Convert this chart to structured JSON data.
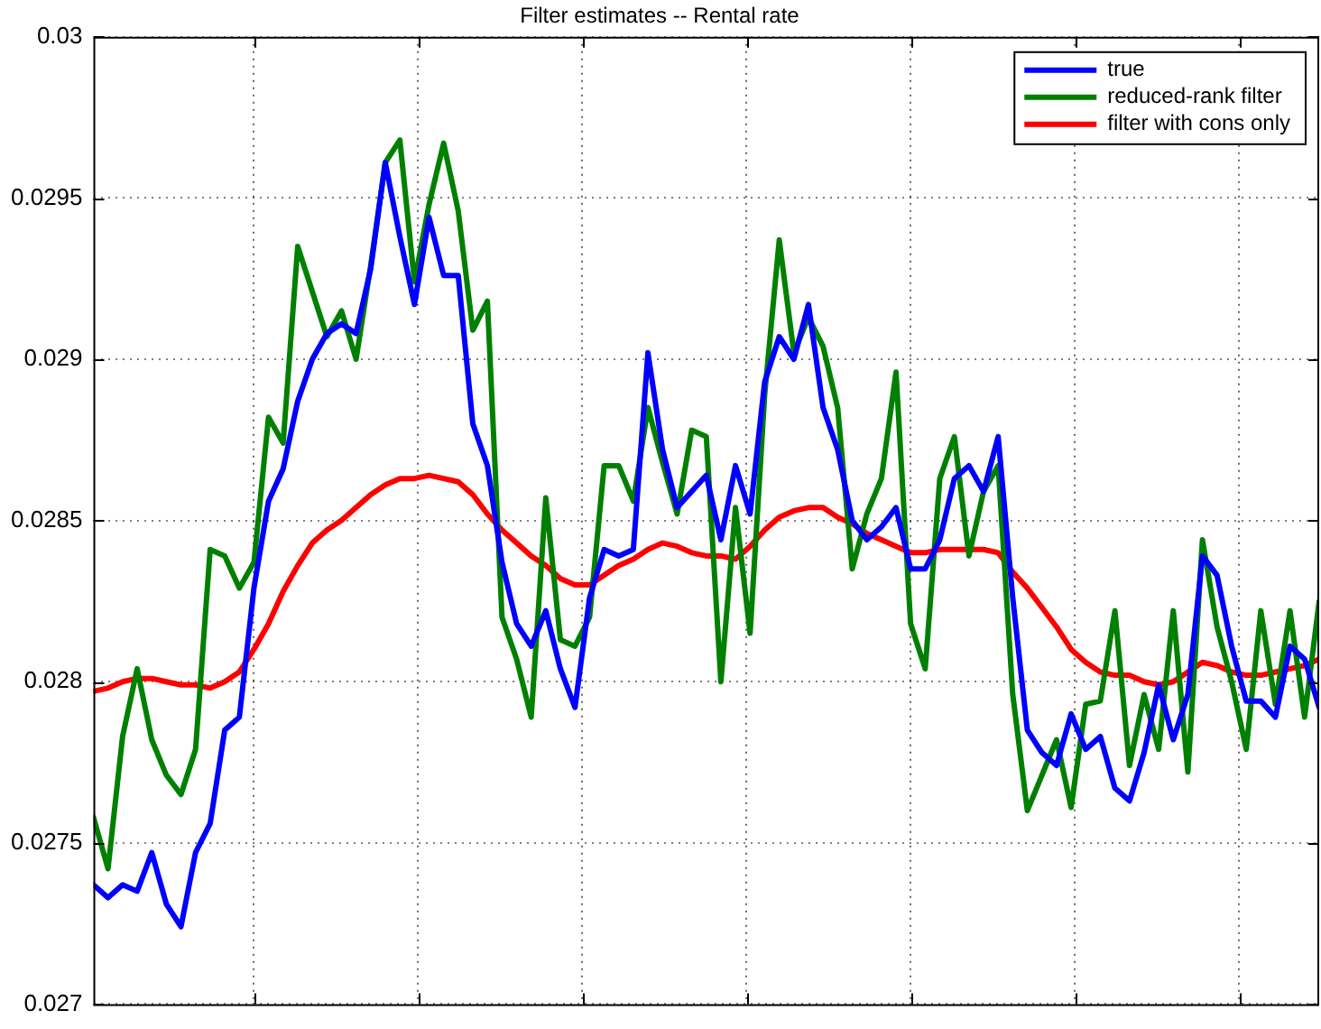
{
  "chart_data": {
    "type": "line",
    "title": "Filter estimates -- Rental rate",
    "categories": [
      null,
      null,
      null,
      null,
      null,
      null,
      null,
      null,
      null,
      null,
      null,
      null,
      null,
      null,
      null,
      null,
      null,
      null,
      null,
      null,
      null,
      null,
      null,
      null,
      null,
      null,
      null,
      null,
      null,
      null,
      null,
      null,
      null,
      null,
      null,
      null,
      null,
      null,
      null,
      null,
      null,
      null,
      null,
      null,
      null,
      null,
      null,
      null,
      null,
      null,
      null,
      null,
      null,
      null,
      null,
      null,
      null,
      null,
      null,
      null,
      null,
      null,
      null,
      null,
      null,
      null,
      null,
      null,
      null,
      null,
      null,
      null,
      null,
      null,
      null,
      null,
      null,
      null,
      null,
      null,
      null,
      null,
      null,
      null,
      null
    ],
    "series": [
      {
        "name": "true",
        "color": "#0000ff",
        "values": [
          0.02737,
          0.02733,
          0.02737,
          0.02735,
          0.02747,
          0.02731,
          0.02724,
          0.02747,
          0.02756,
          0.02785,
          0.02789,
          0.02829,
          0.02856,
          0.02866,
          0.02887,
          0.029,
          0.02908,
          0.02911,
          0.02908,
          0.02928,
          0.02961,
          0.02938,
          0.02917,
          0.02944,
          0.02926,
          0.02926,
          0.0288,
          0.02867,
          0.02837,
          0.02818,
          0.02811,
          0.02822,
          0.02804,
          0.02792,
          0.02826,
          0.02841,
          0.02839,
          0.02841,
          0.02902,
          0.02872,
          0.02854,
          0.02859,
          0.02864,
          0.02844,
          0.02867,
          0.02852,
          0.02893,
          0.02907,
          0.029,
          0.02917,
          0.02885,
          0.02872,
          0.0285,
          0.02844,
          0.02848,
          0.02854,
          0.02835,
          0.02835,
          0.02844,
          0.02863,
          0.02867,
          0.02859,
          0.02876,
          0.02826,
          0.02785,
          0.02778,
          0.02774,
          0.0279,
          0.02779,
          0.02783,
          0.02767,
          0.02763,
          0.02778,
          0.02799,
          0.02782,
          0.02796,
          0.02839,
          0.02833,
          0.02811,
          0.02794,
          0.02794,
          0.02789,
          0.02811,
          0.02807,
          0.02792
        ]
      },
      {
        "name": "reduced-rank filter",
        "color": "#008000",
        "values": [
          0.02758,
          0.02742,
          0.02783,
          0.02804,
          0.02782,
          0.02771,
          0.02765,
          0.02779,
          0.02841,
          0.02839,
          0.02829,
          0.02837,
          0.02882,
          0.02874,
          0.02935,
          0.02921,
          0.02907,
          0.02915,
          0.029,
          0.02929,
          0.02961,
          0.02968,
          0.02924,
          0.02948,
          0.02967,
          0.02946,
          0.02909,
          0.02918,
          0.0282,
          0.02807,
          0.02789,
          0.02857,
          0.02813,
          0.02811,
          0.0282,
          0.02867,
          0.02867,
          0.02856,
          0.02885,
          0.02868,
          0.02852,
          0.02878,
          0.02876,
          0.028,
          0.02854,
          0.02815,
          0.02889,
          0.02937,
          0.02902,
          0.02913,
          0.02904,
          0.02885,
          0.02835,
          0.02852,
          0.02863,
          0.02896,
          0.02818,
          0.02804,
          0.02863,
          0.02876,
          0.02839,
          0.02859,
          0.02867,
          0.02796,
          0.0276,
          0.02771,
          0.02782,
          0.02761,
          0.02793,
          0.02794,
          0.02822,
          0.02774,
          0.02796,
          0.02779,
          0.02822,
          0.02772,
          0.02844,
          0.02817,
          0.028,
          0.02779,
          0.02822,
          0.02793,
          0.02822,
          0.02789,
          0.02825
        ]
      },
      {
        "name": "filter with cons only",
        "color": "#ff0000",
        "values": [
          0.02797,
          0.02798,
          0.028,
          0.02801,
          0.02801,
          0.028,
          0.02799,
          0.02799,
          0.02798,
          0.028,
          0.02803,
          0.0281,
          0.02818,
          0.02828,
          0.02836,
          0.02843,
          0.02847,
          0.0285,
          0.02854,
          0.02858,
          0.02861,
          0.02863,
          0.02863,
          0.02864,
          0.02863,
          0.02862,
          0.02858,
          0.02852,
          0.02847,
          0.02843,
          0.02839,
          0.02836,
          0.02832,
          0.0283,
          0.0283,
          0.02833,
          0.02836,
          0.02838,
          0.02841,
          0.02843,
          0.02842,
          0.0284,
          0.02839,
          0.02839,
          0.02838,
          0.02842,
          0.02847,
          0.02851,
          0.02853,
          0.02854,
          0.02854,
          0.02851,
          0.02849,
          0.02846,
          0.02844,
          0.02842,
          0.0284,
          0.0284,
          0.02841,
          0.02841,
          0.02841,
          0.02841,
          0.0284,
          0.02834,
          0.02829,
          0.02823,
          0.02817,
          0.0281,
          0.02806,
          0.02803,
          0.02802,
          0.02802,
          0.028,
          0.02799,
          0.028,
          0.02803,
          0.02806,
          0.02805,
          0.02803,
          0.02802,
          0.02802,
          0.02803,
          0.02804,
          0.02805,
          0.02807
        ]
      }
    ],
    "ylim": [
      0.027,
      0.03
    ],
    "yticks": [
      0.027,
      0.0275,
      0.028,
      0.0285,
      0.029,
      0.0295,
      0.03
    ],
    "grid": true,
    "legend": "top right",
    "tick_labels": "y",
    "line_style": "solid"
  }
}
